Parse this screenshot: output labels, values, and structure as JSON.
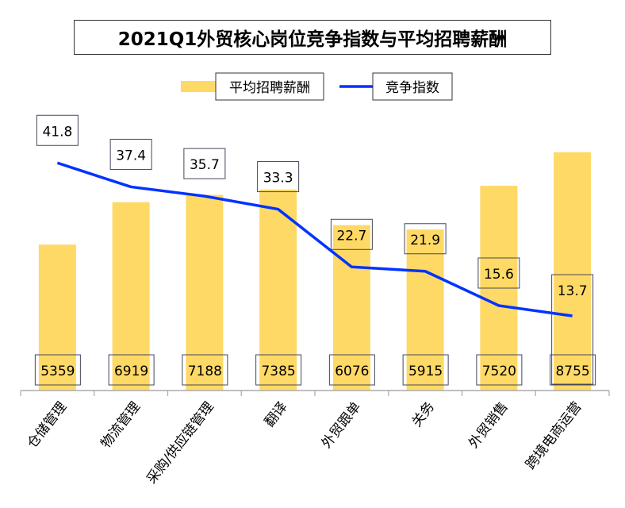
{
  "chart_data": {
    "type": "bar+line",
    "title": "2021Q1外贸核心岗位竞争指数与平均招聘薪酬",
    "categories": [
      "仓储管理",
      "物流管理",
      "采购/供应链管理",
      "翻译",
      "外贸跟单",
      "关务",
      "外贸销售",
      "跨境电商运营"
    ],
    "series": [
      {
        "name": "平均招聘薪酬",
        "type": "bar",
        "color": "#FFD966",
        "values": [
          5359,
          6919,
          7188,
          7385,
          6076,
          5915,
          7520,
          8755
        ]
      },
      {
        "name": "竞争指数",
        "type": "line",
        "color": "#0033FF",
        "values": [
          41.8,
          37.4,
          35.7,
          33.3,
          22.7,
          21.9,
          15.6,
          13.7
        ]
      }
    ],
    "bar_axis_range": [
      0,
      10000
    ],
    "line_axis_range": [
      0,
      50
    ],
    "legend": "top",
    "grid": false
  }
}
